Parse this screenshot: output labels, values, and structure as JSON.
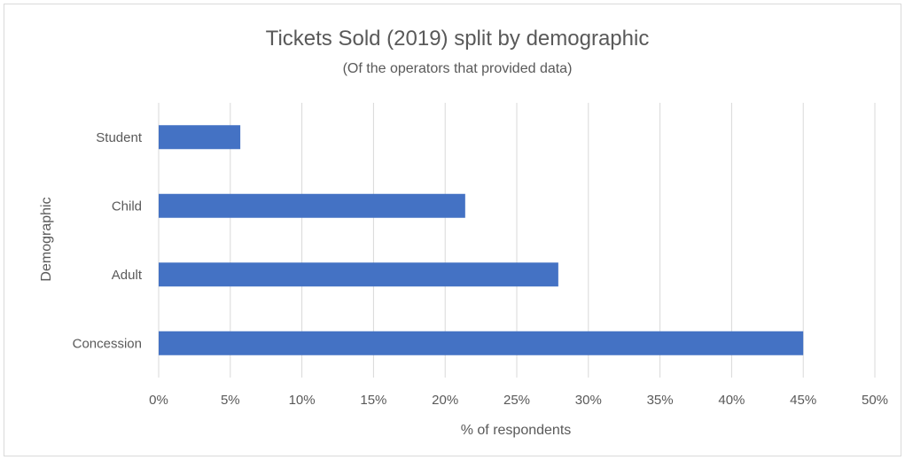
{
  "chart_data": {
    "type": "bar",
    "orientation": "horizontal",
    "title": "Tickets Sold (2019) split by demographic",
    "subtitle": "(Of the operators that provided data)",
    "xlabel": "% of respondents",
    "ylabel": "Demographic",
    "categories": [
      "Student",
      "Child",
      "Adult",
      "Concession"
    ],
    "values": [
      5.7,
      21.4,
      27.9,
      45.0
    ],
    "value_format": "percent",
    "xlim": [
      0,
      50
    ],
    "x_ticks": [
      0,
      5,
      10,
      15,
      20,
      25,
      30,
      35,
      40,
      45,
      50
    ],
    "x_tick_labels": [
      "0%",
      "5%",
      "10%",
      "15%",
      "20%",
      "25%",
      "30%",
      "35%",
      "40%",
      "45%",
      "50%"
    ],
    "grid": "vertical",
    "legend": "none",
    "bar_color": "#4472C4",
    "grid_color": "#d9d9d9"
  }
}
